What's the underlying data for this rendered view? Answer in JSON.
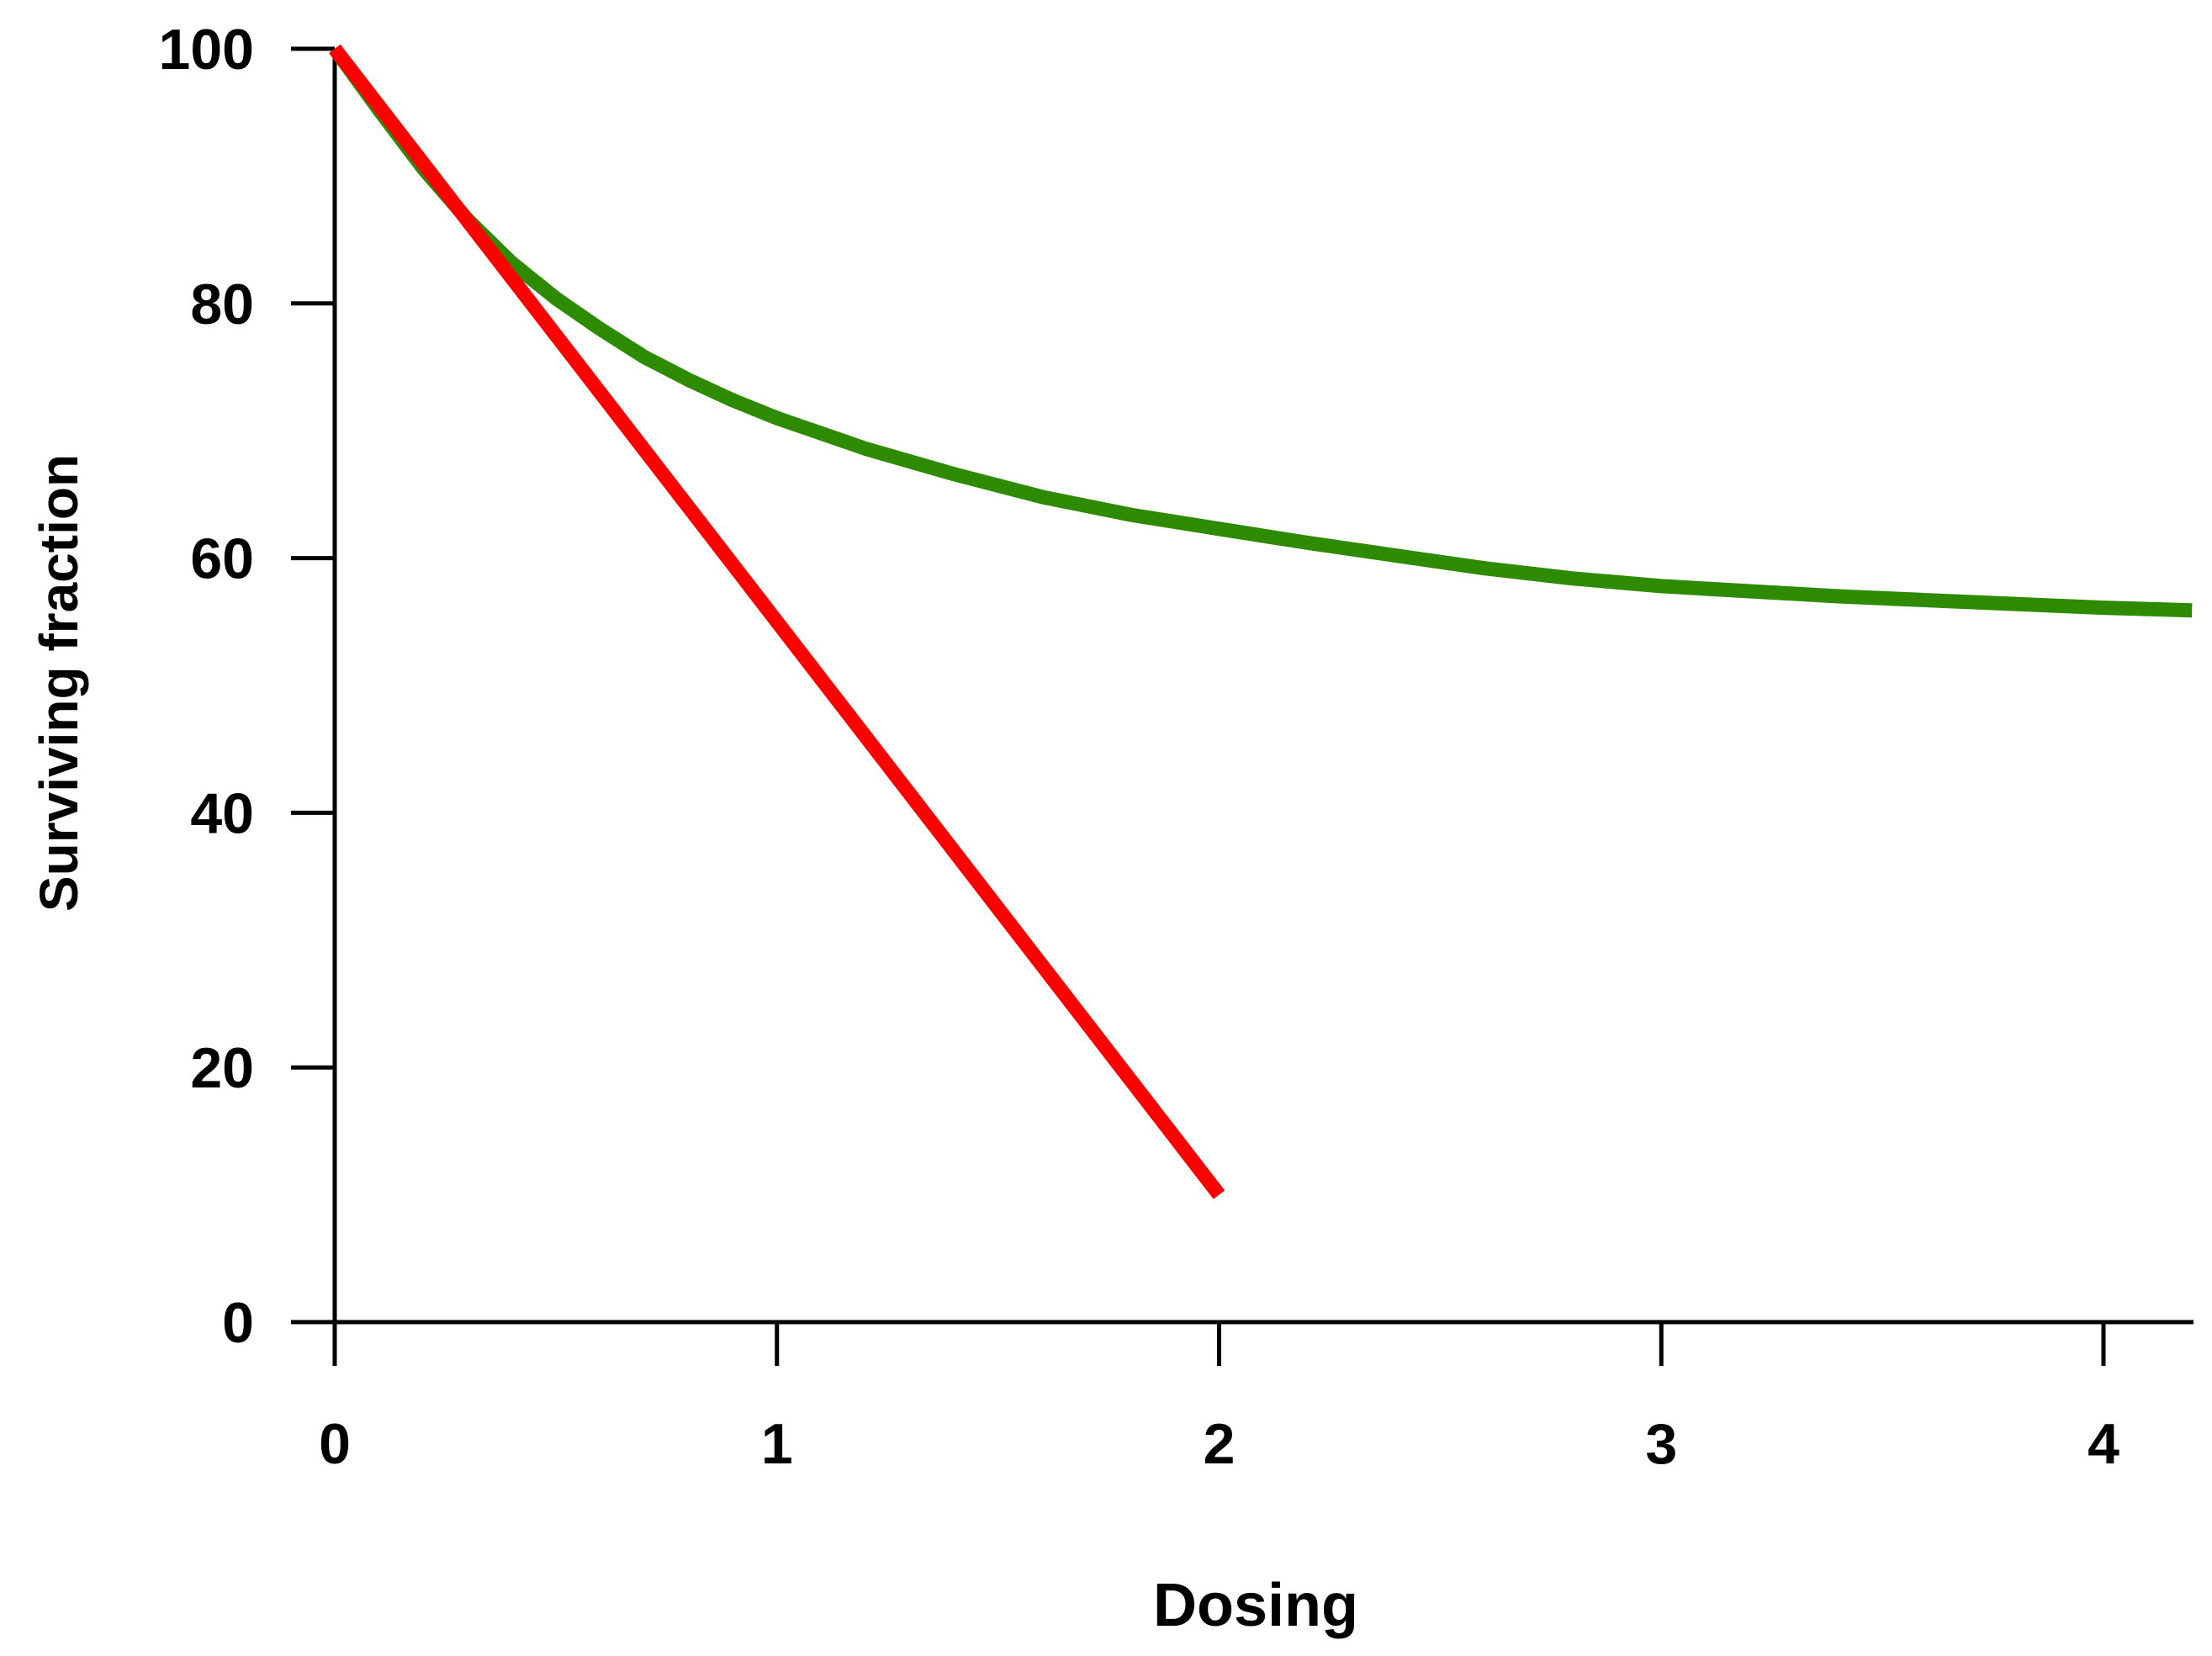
{
  "chart_data": {
    "type": "line",
    "title": "",
    "xlabel": "Dosing",
    "ylabel": "Surviving fraction",
    "xlim": [
      0,
      4.2
    ],
    "ylim": [
      0,
      100
    ],
    "xticks": [
      0,
      1,
      2,
      3,
      4
    ],
    "yticks": [
      0,
      20,
      40,
      60,
      80,
      100
    ],
    "grid": false,
    "legend": "none",
    "series": [
      {
        "color": "#2e8b00",
        "x": [
          0,
          0.1,
          0.2,
          0.3,
          0.4,
          0.5,
          0.6,
          0.7,
          0.8,
          0.9,
          1.0,
          1.2,
          1.4,
          1.6,
          1.8,
          2.0,
          2.2,
          2.4,
          2.6,
          2.8,
          3.0,
          3.2,
          3.4,
          3.6,
          3.8,
          4.0,
          4.2
        ],
        "y": [
          100,
          95.2,
          90.6,
          86.6,
          83.2,
          80.4,
          78.0,
          75.8,
          74.0,
          72.4,
          71.0,
          68.6,
          66.6,
          64.8,
          63.4,
          62.3,
          61.2,
          60.2,
          59.2,
          58.4,
          57.8,
          57.4,
          57.0,
          56.7,
          56.4,
          56.1,
          55.9
        ]
      },
      {
        "color": "#ff0000",
        "x": [
          0,
          0.5,
          1.0,
          1.5,
          2.0
        ],
        "y": [
          100,
          77.5,
          55.0,
          32.5,
          10.0
        ]
      }
    ]
  }
}
